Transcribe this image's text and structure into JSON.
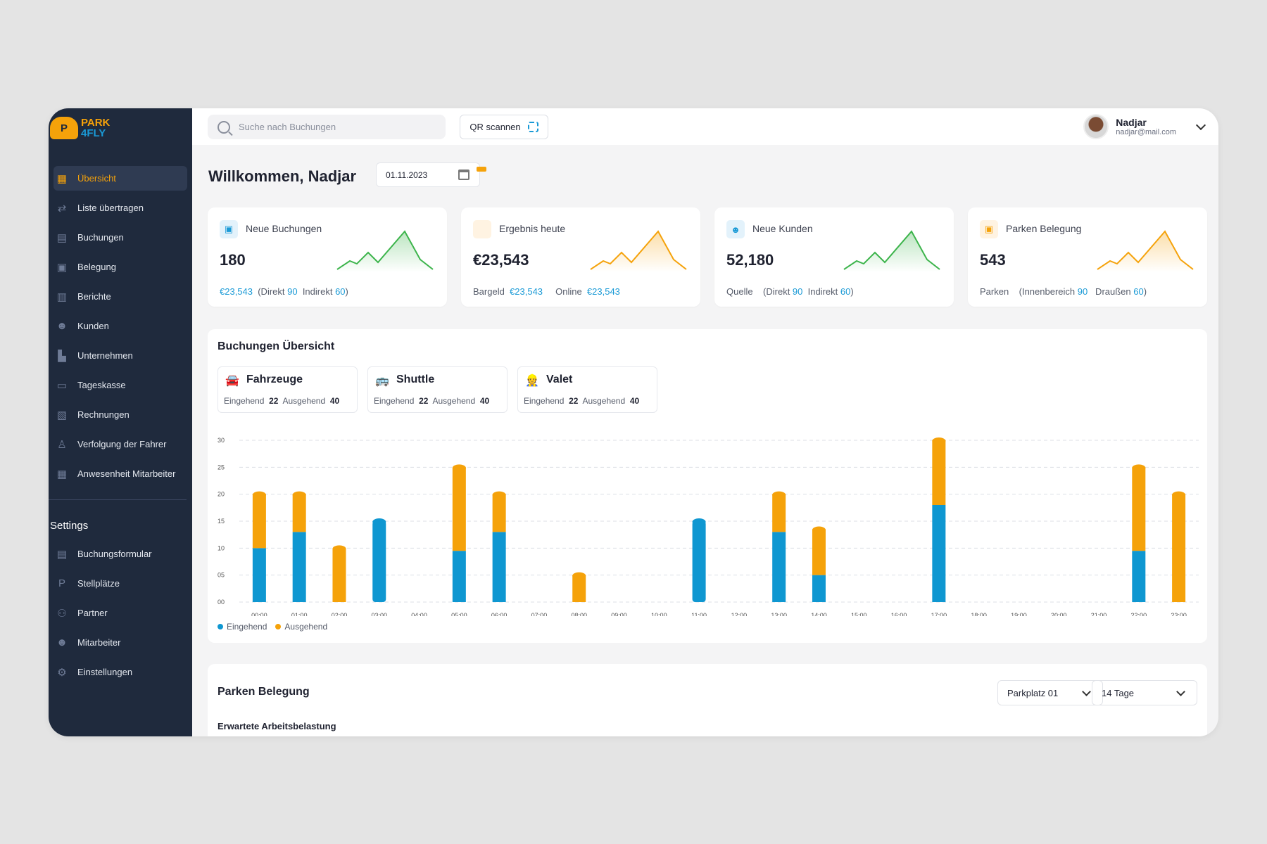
{
  "logo": {
    "badge": "P",
    "line1": "PARK",
    "line2": "4FLY"
  },
  "sidebar": {
    "items": [
      {
        "label": "Übersicht",
        "icon": "dashboard-icon",
        "glyph": "▦",
        "active": true
      },
      {
        "label": "Liste übertragen",
        "icon": "transfer-icon",
        "glyph": "⇄"
      },
      {
        "label": "Buchungen",
        "icon": "bookings-icon",
        "glyph": "▤"
      },
      {
        "label": "Belegung",
        "icon": "occupancy-icon",
        "glyph": "▣"
      },
      {
        "label": "Berichte",
        "icon": "reports-icon",
        "glyph": "▥"
      },
      {
        "label": "Kunden",
        "icon": "customers-icon",
        "glyph": "☻"
      },
      {
        "label": "Unternehmen",
        "icon": "company-icon",
        "glyph": "▙"
      },
      {
        "label": "Tageskasse",
        "icon": "wallet-icon",
        "glyph": "▭"
      },
      {
        "label": "Rechnungen",
        "icon": "invoice-icon",
        "glyph": "▧"
      },
      {
        "label": "Verfolgung der Fahrer",
        "icon": "driver-icon",
        "glyph": "♙"
      },
      {
        "label": "Anwesenheit Mitarbeiter",
        "icon": "attendance-icon",
        "glyph": "▦"
      }
    ],
    "settings_title": "Settings",
    "settings_items": [
      {
        "label": "Buchungsformular",
        "icon": "form-icon",
        "glyph": "▤"
      },
      {
        "label": "Stellplätze",
        "icon": "parking-icon",
        "glyph": "P"
      },
      {
        "label": "Partner",
        "icon": "partner-icon",
        "glyph": "⚇"
      },
      {
        "label": "Mitarbeiter",
        "icon": "staff-icon",
        "glyph": "☻"
      },
      {
        "label": "Einstellungen",
        "icon": "settings-icon",
        "glyph": "⚙"
      }
    ]
  },
  "topbar": {
    "search_placeholder": "Suche nach Buchungen",
    "qr_label": "QR scannen",
    "user_name": "Nadjar",
    "user_email": "nadjar@mail.com"
  },
  "welcome": "Willkommen, Nadjar",
  "date": "01.11.2023",
  "cards": [
    {
      "title": "Neue Buchungen",
      "value": "180",
      "icon_color": "#1a9ad6",
      "icon_bg": "#e3f2fb",
      "icon": "calendar-icon",
      "glyph": "▣",
      "spark_color": "#3cb44b",
      "foot": [
        {
          "t": "€23,543",
          "c": "blue"
        },
        {
          "t": "  (Direkt "
        },
        {
          "t": "90",
          "c": "blue"
        },
        {
          "t": "  Indirekt "
        },
        {
          "t": "60",
          "c": "blue"
        },
        {
          "t": ")"
        }
      ]
    },
    {
      "title": "Ergebnis heute",
      "value": "€23,543",
      "icon_color": "#f5a20a",
      "icon_bg": "#fff3e2",
      "icon": "result-icon",
      "glyph": "",
      "spark_color": "#f5a20a",
      "foot": [
        {
          "t": "Bargeld  "
        },
        {
          "t": "€23,543",
          "c": "blue"
        },
        {
          "t": "     Online  "
        },
        {
          "t": "€23,543",
          "c": "blue"
        }
      ]
    },
    {
      "title": "Neue Kunden",
      "value": "52,180",
      "icon_color": "#1a9ad6",
      "icon_bg": "#e3f2fb",
      "icon": "users-icon",
      "glyph": "☻",
      "spark_color": "#3cb44b",
      "foot": [
        {
          "t": "Quelle    (Direkt "
        },
        {
          "t": "90",
          "c": "blue"
        },
        {
          "t": "  Indirekt "
        },
        {
          "t": "60",
          "c": "blue"
        },
        {
          "t": ")"
        }
      ]
    },
    {
      "title": "Parken Belegung",
      "value": "543",
      "icon_color": "#f5a20a",
      "icon_bg": "#fff3e2",
      "icon": "parking-box-icon",
      "glyph": "▣",
      "spark_color": "#f5a20a",
      "foot": [
        {
          "t": "Parken    (Innenbereich "
        },
        {
          "t": "90",
          "c": "blue"
        },
        {
          "t": "   Draußen "
        },
        {
          "t": "60",
          "c": "blue"
        },
        {
          "t": ")"
        }
      ]
    }
  ],
  "bookings": {
    "title": "Buchungen Übersicht",
    "categories": [
      {
        "name": "Fahrzeuge",
        "icon": "car-icon",
        "glyph": "🚘",
        "incoming_label": "Eingehend",
        "incoming": "22",
        "outgoing_label": "Ausgehend",
        "outgoing": "40"
      },
      {
        "name": "Shuttle",
        "icon": "bus-icon",
        "glyph": "🚌",
        "incoming_label": "Eingehend",
        "incoming": "22",
        "outgoing_label": "Ausgehend",
        "outgoing": "40"
      },
      {
        "name": "Valet",
        "icon": "valet-icon",
        "glyph": "👷",
        "incoming_label": "Eingehend",
        "incoming": "22",
        "outgoing_label": "Ausgehend",
        "outgoing": "40"
      }
    ],
    "legend": {
      "incoming": "Eingehend",
      "outgoing": "Ausgehend"
    }
  },
  "chart_data": {
    "type": "bar",
    "stacked": true,
    "categories": [
      "00:00",
      "01:00",
      "02:00",
      "03:00",
      "04:00",
      "05:00",
      "06:00",
      "07:00",
      "08:00",
      "09:00",
      "10:00",
      "11:00",
      "12:00",
      "13:00",
      "14:00",
      "15:00",
      "16:00",
      "17:00",
      "18:00",
      "19:00",
      "20:00",
      "21:00",
      "22:00",
      "23:00"
    ],
    "yticks": [
      "00",
      "05",
      "10",
      "15",
      "20",
      "25",
      "30"
    ],
    "ylim": [
      0,
      30
    ],
    "grid": true,
    "legend_position": "bottom-left",
    "series": [
      {
        "name": "Eingehend",
        "color": "#0f97d1",
        "values": [
          10,
          13,
          0,
          15,
          0,
          9.5,
          13,
          0,
          0,
          0,
          0,
          15,
          0,
          13,
          5,
          0,
          0,
          18,
          0,
          0,
          0,
          0,
          9.5,
          0
        ]
      },
      {
        "name": "Ausgehend",
        "color": "#f5a20a",
        "values": [
          10,
          7,
          10,
          0,
          0,
          15.5,
          7,
          0,
          5,
          0,
          0,
          0,
          0,
          7,
          8.5,
          0,
          0,
          12,
          0,
          0,
          0,
          0,
          15.5,
          20
        ]
      }
    ]
  },
  "parking": {
    "title": "Parken Belegung",
    "select1": "Parkplatz 01",
    "select2": "14 Tage",
    "subtitle": "Erwartete Arbeitsbelastung"
  }
}
